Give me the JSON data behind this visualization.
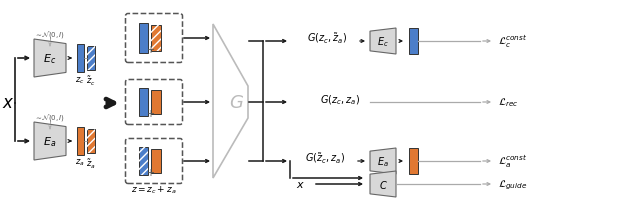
{
  "blue_color": "#4C7EC9",
  "orange_color": "#E07832",
  "gray_enc": "#D8D8D8",
  "gray_edge": "#666666",
  "light_gray": "#AAAAAA",
  "dark_gray": "#555555",
  "bg_color": "#FFFFFF",
  "arrow_black": "#1A1A1A"
}
